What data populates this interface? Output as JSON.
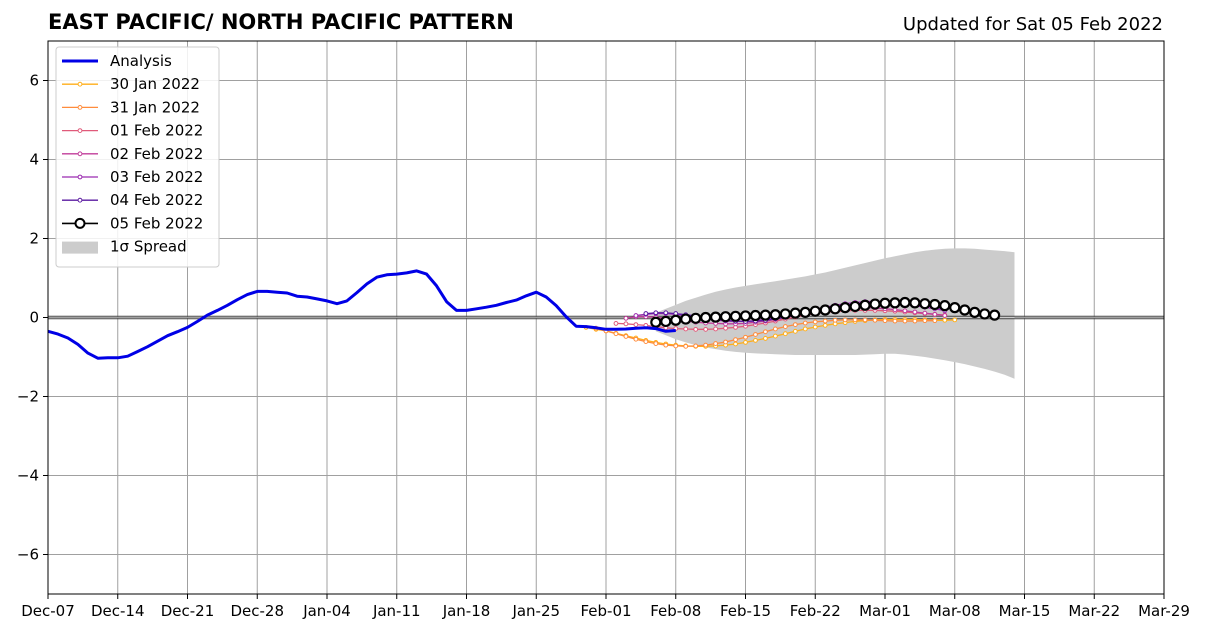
{
  "chart_data": {
    "type": "line",
    "title": "EAST PACIFIC/ NORTH PACIFIC PATTERN",
    "subtitle": "Updated for Sat 05 Feb 2022",
    "xlabel": "",
    "ylabel": "",
    "x_axis": {
      "start": "Dec-07",
      "end": "Mar-29",
      "tick_labels": [
        "Dec-07",
        "Dec-14",
        "Dec-21",
        "Dec-28",
        "Jan-04",
        "Jan-11",
        "Jan-18",
        "Jan-25",
        "Feb-01",
        "Feb-08",
        "Feb-15",
        "Feb-22",
        "Mar-01",
        "Mar-08",
        "Mar-15",
        "Mar-22",
        "Mar-29"
      ]
    },
    "ylim": [
      -7,
      7
    ],
    "y_ticks": [
      -6,
      -4,
      -2,
      0,
      2,
      4,
      6
    ],
    "y_tick_labels": [
      "−6",
      "−4",
      "−2",
      "0",
      "2",
      "4",
      "6"
    ],
    "grid": true,
    "legend_placement": "top-left",
    "legend": [
      "Analysis",
      "30 Jan 2022",
      "31 Jan 2022",
      "01 Feb 2022",
      "02 Feb 2022",
      "03 Feb 2022",
      "04 Feb 2022",
      "05 Feb 2022",
      "1σ Spread"
    ],
    "analysis": {
      "name": "Analysis",
      "color": "#0000e6",
      "start": "Dec-07",
      "values": [
        -0.35,
        -0.42,
        -0.52,
        -0.68,
        -0.9,
        -1.03,
        -1.02,
        -1.02,
        -0.98,
        -0.86,
        -0.74,
        -0.6,
        -0.46,
        -0.36,
        -0.25,
        -0.1,
        0.06,
        0.18,
        0.31,
        0.45,
        0.58,
        0.66,
        0.66,
        0.64,
        0.62,
        0.54,
        0.52,
        0.47,
        0.42,
        0.35,
        0.42,
        0.63,
        0.85,
        1.02,
        1.08,
        1.1,
        1.13,
        1.18,
        1.1,
        0.8,
        0.4,
        0.18,
        0.18,
        0.22,
        0.26,
        0.31,
        0.38,
        0.44,
        0.55,
        0.64,
        0.52,
        0.3,
        0.02,
        -0.22,
        -0.23,
        -0.26,
        -0.3,
        -0.3,
        -0.29,
        -0.27,
        -0.26,
        -0.28,
        -0.35,
        -0.33
      ]
    },
    "series": [
      {
        "name": "30 Jan 2022",
        "color": "#ffae1a",
        "start": "Jan-30",
        "values": [
          -0.25,
          -0.3,
          -0.34,
          -0.4,
          -0.46,
          -0.52,
          -0.58,
          -0.63,
          -0.67,
          -0.7,
          -0.72,
          -0.73,
          -0.73,
          -0.72,
          -0.7,
          -0.67,
          -0.63,
          -0.58,
          -0.53,
          -0.47,
          -0.41,
          -0.35,
          -0.29,
          -0.24,
          -0.2,
          -0.16,
          -0.13,
          -0.1,
          -0.08,
          -0.06,
          -0.05,
          -0.05,
          -0.05,
          -0.05,
          -0.06,
          -0.07,
          -0.07,
          -0.06
        ]
      },
      {
        "name": "31 Jan 2022",
        "color": "#ff8c3c",
        "start": "Jan-31",
        "values": [
          -0.27,
          -0.34,
          -0.41,
          -0.48,
          -0.55,
          -0.61,
          -0.66,
          -0.7,
          -0.72,
          -0.73,
          -0.72,
          -0.7,
          -0.66,
          -0.62,
          -0.56,
          -0.5,
          -0.43,
          -0.36,
          -0.29,
          -0.23,
          -0.18,
          -0.14,
          -0.11,
          -0.09,
          -0.07,
          -0.06,
          -0.06,
          -0.06,
          -0.07,
          -0.08,
          -0.09,
          -0.09,
          -0.09,
          -0.08,
          -0.08
        ]
      },
      {
        "name": "01 Feb 2022",
        "color": "#e05a7a",
        "start": "Feb-02",
        "values": [
          -0.15,
          -0.16,
          -0.18,
          -0.2,
          -0.23,
          -0.26,
          -0.28,
          -0.29,
          -0.3,
          -0.3,
          -0.29,
          -0.27,
          -0.25,
          -0.22,
          -0.18,
          -0.14,
          -0.09,
          -0.04,
          0.01,
          0.06,
          0.1,
          0.13,
          0.15,
          0.17,
          0.18,
          0.18,
          0.18,
          0.17,
          0.16,
          0.14,
          0.12,
          0.1,
          0.08,
          0.06
        ]
      },
      {
        "name": "02 Feb 2022",
        "color": "#c03c9a",
        "start": "Feb-03",
        "values": [
          -0.02,
          0.02,
          0.02,
          0.01,
          -0.02,
          -0.06,
          -0.09,
          -0.12,
          -0.14,
          -0.15,
          -0.16,
          -0.16,
          -0.15,
          -0.12,
          -0.09,
          -0.05,
          0.0,
          0.05,
          0.1,
          0.15,
          0.19,
          0.22,
          0.24,
          0.25,
          0.25,
          0.24,
          0.22,
          0.2,
          0.17,
          0.14,
          0.11,
          0.08,
          0.05
        ]
      },
      {
        "name": "03 Feb 2022",
        "color": "#9a2ab0",
        "start": "Feb-04",
        "values": [
          0.05,
          0.08,
          0.1,
          0.1,
          0.08,
          0.05,
          0.02,
          -0.02,
          -0.06,
          -0.09,
          -0.1,
          -0.1,
          -0.08,
          -0.05,
          -0.01,
          0.04,
          0.1,
          0.16,
          0.21,
          0.26,
          0.31,
          0.35,
          0.38,
          0.4,
          0.41,
          0.4,
          0.38,
          0.34,
          0.3,
          0.26,
          0.22,
          0.17
        ]
      },
      {
        "name": "04 Feb 2022",
        "color": "#5a1aa0",
        "start": "Feb-05",
        "values": [
          0.1,
          0.12,
          0.12,
          0.1,
          0.07,
          0.04,
          0.0,
          -0.04,
          -0.07,
          -0.09,
          -0.1,
          -0.09,
          -0.07,
          -0.03,
          0.01,
          0.06,
          0.11,
          0.16,
          0.21,
          0.26,
          0.3,
          0.34,
          0.37,
          0.39,
          0.4,
          0.4,
          0.38,
          0.35,
          0.31,
          0.26,
          0.21
        ]
      },
      {
        "name": "05 Feb 2022",
        "color": "#000000",
        "start": "Feb-06",
        "values": [
          -0.12,
          -0.1,
          -0.07,
          -0.04,
          -0.02,
          0.0,
          0.01,
          0.02,
          0.03,
          0.04,
          0.05,
          0.06,
          0.07,
          0.09,
          0.11,
          0.13,
          0.16,
          0.19,
          0.22,
          0.25,
          0.28,
          0.31,
          0.34,
          0.36,
          0.37,
          0.38,
          0.37,
          0.35,
          0.33,
          0.3,
          0.25,
          0.19,
          0.13,
          0.09,
          0.06
        ]
      }
    ],
    "spread": {
      "name": "1σ Spread",
      "color": "#cccccc",
      "start": "Feb-06",
      "upper": [
        0.12,
        0.22,
        0.32,
        0.42,
        0.5,
        0.58,
        0.65,
        0.71,
        0.76,
        0.8,
        0.84,
        0.88,
        0.92,
        0.96,
        1.0,
        1.04,
        1.09,
        1.14,
        1.2,
        1.26,
        1.32,
        1.38,
        1.44,
        1.5,
        1.55,
        1.6,
        1.65,
        1.69,
        1.72,
        1.74,
        1.75,
        1.75,
        1.74,
        1.72,
        1.7,
        1.68,
        1.65
      ],
      "lower": [
        -0.35,
        -0.45,
        -0.55,
        -0.63,
        -0.7,
        -0.76,
        -0.8,
        -0.84,
        -0.87,
        -0.89,
        -0.91,
        -0.92,
        -0.93,
        -0.94,
        -0.95,
        -0.95,
        -0.95,
        -0.95,
        -0.95,
        -0.95,
        -0.95,
        -0.94,
        -0.93,
        -0.92,
        -0.92,
        -0.94,
        -0.97,
        -1.0,
        -1.04,
        -1.08,
        -1.13,
        -1.18,
        -1.24,
        -1.3,
        -1.37,
        -1.45,
        -1.55
      ]
    }
  }
}
